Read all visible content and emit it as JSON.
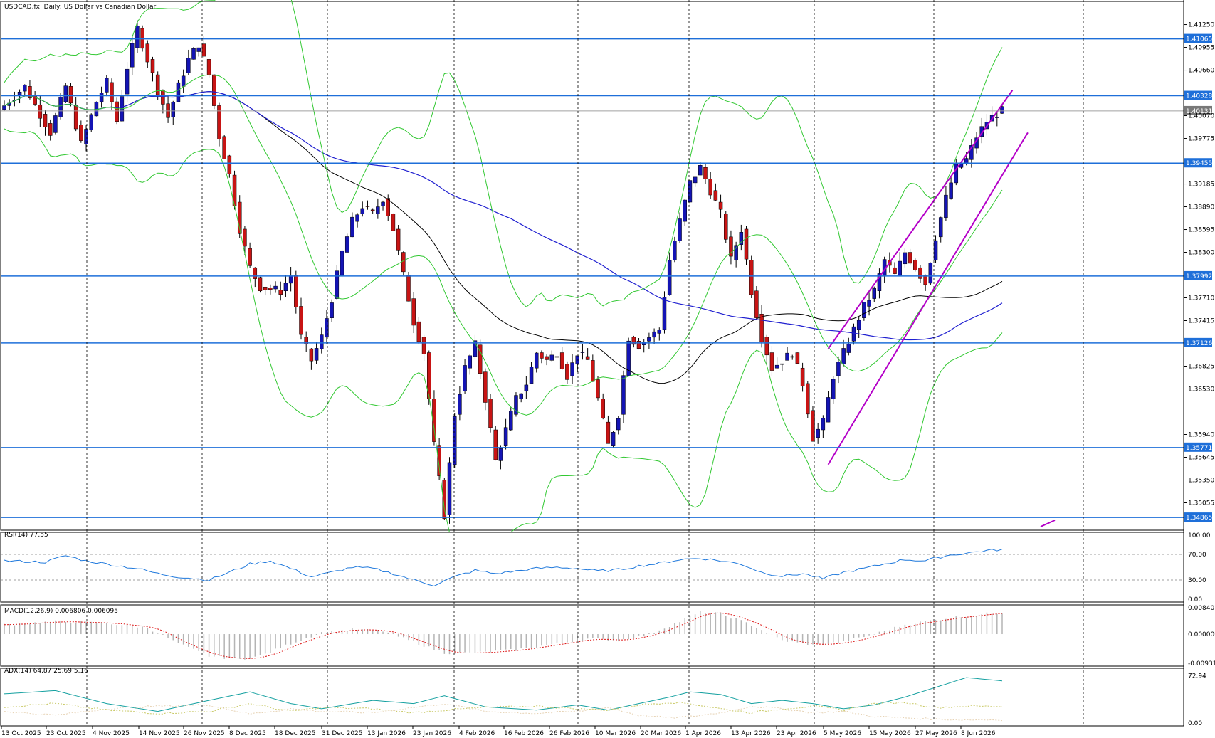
{
  "header": {
    "title": "USDCAD.fx, Daily:  US Dollar vs Canadian Dollar"
  },
  "chart_data": {
    "type": "candlestick",
    "title": "USDCAD.fx, Daily:  US Dollar vs Canadian Dollar",
    "main_panel": {
      "ylim": [
        1.347,
        1.4155
      ],
      "price_ticks": [
        "1.41250",
        "1.40955",
        "1.40660",
        "1.40070",
        "1.39775",
        "1.39185",
        "1.38890",
        "1.38595",
        "1.38300",
        "1.37710",
        "1.37415",
        "1.36825",
        "1.36530",
        "1.35940",
        "1.35645",
        "1.35350",
        "1.35055"
      ],
      "horizontal_levels": [
        {
          "label": "1.41065",
          "value": 1.41065
        },
        {
          "label": "1.40328",
          "value": 1.40328
        },
        {
          "label": "1.39455",
          "value": 1.39455
        },
        {
          "label": "1.37992",
          "value": 1.37992
        },
        {
          "label": "1.37126",
          "value": 1.37126
        },
        {
          "label": "1.35771",
          "value": 1.35771
        },
        {
          "label": "1.34865",
          "value": 1.34865
        }
      ],
      "current_price": {
        "label": "1.40131",
        "value": 1.40131
      },
      "level_color": "#1e6fd9",
      "bull_color": "#1414b4",
      "bear_color": "#c81414",
      "anchors": [
        [
          0,
          1.402
        ],
        [
          4,
          1.4045
        ],
        [
          9,
          1.3985
        ],
        [
          12,
          1.4045
        ],
        [
          15,
          1.397
        ],
        [
          18,
          1.4025
        ],
        [
          20,
          1.405
        ],
        [
          22,
          1.4
        ],
        [
          24,
          1.407
        ],
        [
          26,
          1.412
        ],
        [
          28,
          1.408
        ],
        [
          30,
          1.404
        ],
        [
          32,
          1.4005
        ],
        [
          34,
          1.4045
        ],
        [
          36,
          1.408
        ],
        [
          38,
          1.41
        ],
        [
          40,
          1.406
        ],
        [
          42,
          1.398
        ],
        [
          44,
          1.393
        ],
        [
          46,
          1.386
        ],
        [
          48,
          1.381
        ],
        [
          50,
          1.3785
        ],
        [
          54,
          1.378
        ],
        [
          56,
          1.38
        ],
        [
          58,
          1.372
        ],
        [
          60,
          1.369
        ],
        [
          62,
          1.372
        ],
        [
          64,
          1.377
        ],
        [
          66,
          1.383
        ],
        [
          68,
          1.387
        ],
        [
          70,
          1.389
        ],
        [
          72,
          1.388
        ],
        [
          74,
          1.39
        ],
        [
          76,
          1.386
        ],
        [
          78,
          1.38
        ],
        [
          80,
          1.374
        ],
        [
          82,
          1.37
        ],
        [
          84,
          1.358
        ],
        [
          86,
          1.349
        ],
        [
          88,
          1.362
        ],
        [
          90,
          1.368
        ],
        [
          92,
          1.371
        ],
        [
          94,
          1.364
        ],
        [
          96,
          1.356
        ],
        [
          98,
          1.36
        ],
        [
          100,
          1.364
        ],
        [
          102,
          1.366
        ],
        [
          104,
          1.37
        ],
        [
          106,
          1.369
        ],
        [
          108,
          1.37
        ],
        [
          110,
          1.367
        ],
        [
          112,
          1.37
        ],
        [
          114,
          1.369
        ],
        [
          116,
          1.364
        ],
        [
          118,
          1.358
        ],
        [
          120,
          1.362
        ],
        [
          122,
          1.372
        ],
        [
          124,
          1.371
        ],
        [
          126,
          1.372
        ],
        [
          128,
          1.373
        ],
        [
          130,
          1.382
        ],
        [
          132,
          1.387
        ],
        [
          134,
          1.392
        ],
        [
          136,
          1.394
        ],
        [
          138,
          1.391
        ],
        [
          140,
          1.388
        ],
        [
          142,
          1.382
        ],
        [
          144,
          1.386
        ],
        [
          146,
          1.378
        ],
        [
          148,
          1.372
        ],
        [
          150,
          1.368
        ],
        [
          152,
          1.369
        ],
        [
          154,
          1.37
        ],
        [
          156,
          1.366
        ],
        [
          158,
          1.359
        ],
        [
          160,
          1.361
        ],
        [
          162,
          1.367
        ],
        [
          164,
          1.37
        ],
        [
          166,
          1.373
        ],
        [
          168,
          1.376
        ],
        [
          170,
          1.378
        ],
        [
          172,
          1.382
        ],
        [
          174,
          1.38
        ],
        [
          176,
          1.383
        ],
        [
          178,
          1.381
        ],
        [
          180,
          1.379
        ],
        [
          182,
          1.385
        ],
        [
          184,
          1.39
        ],
        [
          186,
          1.394
        ],
        [
          188,
          1.395
        ],
        [
          190,
          1.398
        ],
        [
          192,
          1.4
        ],
        [
          194,
          1.401
        ],
        [
          195,
          1.4013
        ]
      ],
      "sma_fast_color": "#000000",
      "sma_slow_color": "#2020d0",
      "bands_color": "#32c832",
      "channel_color": "#b400c8"
    },
    "x_labels": [
      "13 Oct 2025",
      "23 Oct 2025",
      "4 Nov 2025",
      "14 Nov 2025",
      "26 Nov 2025",
      "8 Dec 2025",
      "18 Dec 2025",
      "31 Dec 2025",
      "13 Jan 2026",
      "23 Jan 2026",
      "4 Feb 2026",
      "16 Feb 2026",
      "26 Feb 2026",
      "10 Mar 2026",
      "20 Mar 2026",
      "1 Apr 2026",
      "13 Apr 2026",
      "23 Apr 2026",
      "5 May 2026",
      "15 May 2026",
      "27 May 2026",
      "8 Jun 2026"
    ],
    "rsi": {
      "label": "RSI(14) 77.55",
      "ticks": [
        "100.00",
        "70.00",
        "30.00",
        "0.00"
      ],
      "ylim": [
        0,
        100
      ],
      "levels": [
        70,
        30
      ],
      "color": "#1e78dc",
      "anchors": [
        [
          0,
          60
        ],
        [
          8,
          58
        ],
        [
          12,
          68
        ],
        [
          16,
          60
        ],
        [
          20,
          55
        ],
        [
          26,
          48
        ],
        [
          30,
          40
        ],
        [
          34,
          35
        ],
        [
          40,
          30
        ],
        [
          44,
          42
        ],
        [
          48,
          55
        ],
        [
          52,
          60
        ],
        [
          56,
          48
        ],
        [
          60,
          35
        ],
        [
          64,
          42
        ],
        [
          68,
          50
        ],
        [
          72,
          48
        ],
        [
          76,
          40
        ],
        [
          80,
          30
        ],
        [
          84,
          22
        ],
        [
          88,
          35
        ],
        [
          92,
          45
        ],
        [
          96,
          40
        ],
        [
          100,
          44
        ],
        [
          104,
          48
        ],
        [
          108,
          50
        ],
        [
          112,
          48
        ],
        [
          116,
          44
        ],
        [
          120,
          46
        ],
        [
          124,
          52
        ],
        [
          128,
          56
        ],
        [
          132,
          62
        ],
        [
          136,
          64
        ],
        [
          140,
          60
        ],
        [
          144,
          55
        ],
        [
          148,
          42
        ],
        [
          152,
          36
        ],
        [
          156,
          40
        ],
        [
          160,
          32
        ],
        [
          164,
          42
        ],
        [
          168,
          48
        ],
        [
          172,
          55
        ],
        [
          176,
          62
        ],
        [
          180,
          60
        ],
        [
          184,
          68
        ],
        [
          188,
          72
        ],
        [
          192,
          76
        ],
        [
          195,
          77.55
        ]
      ]
    },
    "macd": {
      "label": "MACD(12,26,9) 0.006806 0.006095",
      "ticks": [
        "0.008407",
        "0.000000",
        "-0.009312"
      ],
      "ylim": [
        -0.0093,
        0.0084
      ],
      "hist_color": "#b4b4b4",
      "signal_color": "#dc1414",
      "anchors": [
        [
          0,
          0.003
        ],
        [
          10,
          0.004
        ],
        [
          20,
          0.0035
        ],
        [
          28,
          0.002
        ],
        [
          34,
          -0.003
        ],
        [
          40,
          -0.007
        ],
        [
          46,
          -0.008
        ],
        [
          50,
          -0.007
        ],
        [
          56,
          -0.003
        ],
        [
          62,
          0.0005
        ],
        [
          68,
          0.0015
        ],
        [
          74,
          0.001
        ],
        [
          80,
          -0.0025
        ],
        [
          86,
          -0.006
        ],
        [
          92,
          -0.006
        ],
        [
          100,
          -0.005
        ],
        [
          108,
          -0.003
        ],
        [
          114,
          -0.0015
        ],
        [
          120,
          -0.002
        ],
        [
          126,
          0.0
        ],
        [
          132,
          0.004
        ],
        [
          136,
          0.007
        ],
        [
          140,
          0.0065
        ],
        [
          146,
          0.003
        ],
        [
          152,
          -0.002
        ],
        [
          158,
          -0.0035
        ],
        [
          164,
          -0.0025
        ],
        [
          170,
          0.0
        ],
        [
          176,
          0.003
        ],
        [
          184,
          0.005
        ],
        [
          192,
          0.0065
        ],
        [
          195,
          0.0068
        ]
      ]
    },
    "adx": {
      "label": "ADX(14) 64.87 25.69 5.16",
      "ticks": [
        "72.94",
        "0.00"
      ],
      "ylim": [
        0,
        80
      ],
      "colors": [
        "#14a0a0",
        "#c8c864",
        "#e6d2b4"
      ],
      "adx_anchors": [
        [
          0,
          45
        ],
        [
          10,
          50
        ],
        [
          20,
          30
        ],
        [
          30,
          18
        ],
        [
          40,
          35
        ],
        [
          48,
          48
        ],
        [
          56,
          30
        ],
        [
          62,
          22
        ],
        [
          72,
          35
        ],
        [
          80,
          30
        ],
        [
          86,
          42
        ],
        [
          94,
          25
        ],
        [
          104,
          20
        ],
        [
          112,
          28
        ],
        [
          118,
          20
        ],
        [
          124,
          30
        ],
        [
          130,
          40
        ],
        [
          134,
          48
        ],
        [
          140,
          44
        ],
        [
          146,
          30
        ],
        [
          152,
          35
        ],
        [
          158,
          30
        ],
        [
          164,
          22
        ],
        [
          170,
          28
        ],
        [
          176,
          40
        ],
        [
          182,
          55
        ],
        [
          188,
          70
        ],
        [
          195,
          65
        ]
      ],
      "plus_anchors": [
        [
          0,
          25
        ],
        [
          10,
          30
        ],
        [
          20,
          20
        ],
        [
          30,
          15
        ],
        [
          40,
          18
        ],
        [
          48,
          30
        ],
        [
          56,
          18
        ],
        [
          62,
          24
        ],
        [
          72,
          22
        ],
        [
          80,
          16
        ],
        [
          86,
          20
        ],
        [
          94,
          24
        ],
        [
          104,
          26
        ],
        [
          112,
          22
        ],
        [
          118,
          20
        ],
        [
          124,
          28
        ],
        [
          130,
          32
        ],
        [
          134,
          30
        ],
        [
          140,
          22
        ],
        [
          146,
          16
        ],
        [
          152,
          22
        ],
        [
          158,
          26
        ],
        [
          164,
          20
        ],
        [
          170,
          30
        ],
        [
          176,
          32
        ],
        [
          182,
          24
        ],
        [
          188,
          26
        ],
        [
          195,
          25.69
        ]
      ],
      "minus_anchors": [
        [
          0,
          18
        ],
        [
          10,
          12
        ],
        [
          20,
          22
        ],
        [
          30,
          26
        ],
        [
          40,
          28
        ],
        [
          48,
          14
        ],
        [
          56,
          22
        ],
        [
          62,
          18
        ],
        [
          72,
          16
        ],
        [
          80,
          24
        ],
        [
          86,
          30
        ],
        [
          94,
          18
        ],
        [
          104,
          15
        ],
        [
          112,
          18
        ],
        [
          118,
          24
        ],
        [
          124,
          12
        ],
        [
          130,
          8
        ],
        [
          134,
          10
        ],
        [
          140,
          16
        ],
        [
          146,
          26
        ],
        [
          152,
          22
        ],
        [
          158,
          16
        ],
        [
          164,
          18
        ],
        [
          170,
          10
        ],
        [
          176,
          8
        ],
        [
          182,
          6
        ],
        [
          188,
          5
        ],
        [
          195,
          5.16
        ]
      ]
    }
  }
}
